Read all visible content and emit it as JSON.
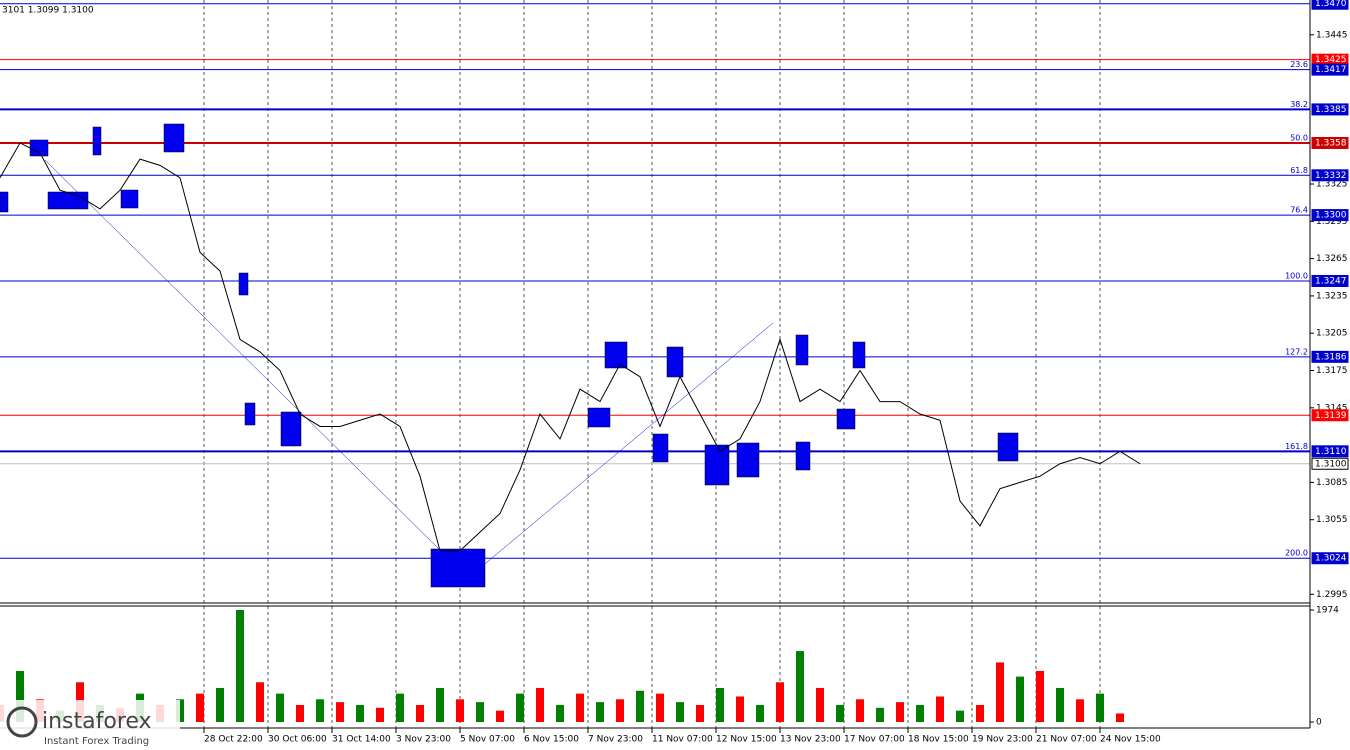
{
  "brand": {
    "name": "instaforex",
    "tagline": "Instant Forex Trading"
  },
  "chart_data": [
    {
      "type": "line",
      "title": "3101 1.3099 1.3100",
      "color": "#000000",
      "x": [
        0,
        1,
        2,
        3,
        4,
        5,
        6,
        7,
        8,
        9,
        10,
        11,
        12,
        13,
        14,
        15,
        16,
        17,
        18,
        19,
        20,
        21,
        22,
        23,
        24,
        25,
        26,
        27,
        28,
        29,
        30,
        31,
        32,
        33,
        34,
        35,
        36,
        37,
        38,
        39,
        40,
        41,
        42,
        43,
        44,
        45,
        46,
        47,
        48,
        49,
        50,
        51,
        52,
        53,
        54,
        55,
        56,
        57
      ],
      "values": [
        1.333,
        1.3358,
        1.335,
        1.332,
        1.3315,
        1.3305,
        1.332,
        1.3345,
        1.334,
        1.333,
        1.327,
        1.3255,
        1.32,
        1.319,
        1.3175,
        1.314,
        1.313,
        1.313,
        1.3135,
        1.314,
        1.313,
        1.309,
        1.303,
        1.303,
        1.3045,
        1.306,
        1.3095,
        1.314,
        1.312,
        1.316,
        1.315,
        1.318,
        1.317,
        1.313,
        1.317,
        1.314,
        1.311,
        1.312,
        1.315,
        1.32,
        1.315,
        1.316,
        1.315,
        1.3175,
        1.315,
        1.315,
        1.314,
        1.3135,
        1.307,
        1.305,
        1.308,
        1.3085,
        1.309,
        1.31,
        1.3105,
        1.31,
        1.311,
        1.31
      ],
      "xlim": [
        0,
        65.5
      ],
      "ylim": [
        1.2988,
        1.3473
      ],
      "xticks": [
        {
          "value": 10.2,
          "label": "28 Oct 22:00"
        },
        {
          "value": 13.4,
          "label": "30 Oct 06:00"
        },
        {
          "value": 16.6,
          "label": "31 Oct 14:00"
        },
        {
          "value": 19.8,
          "label": "3 Nov 23:00"
        },
        {
          "value": 23,
          "label": "5 Nov 07:00"
        },
        {
          "value": 26.2,
          "label": "6 Nov 15:00"
        },
        {
          "value": 29.4,
          "label": "7 Nov 23:00"
        },
        {
          "value": 32.6,
          "label": "11 Nov 07:00"
        },
        {
          "value": 35.8,
          "label": "12 Nov 15:00"
        },
        {
          "value": 39,
          "label": "13 Nov 23:00"
        },
        {
          "value": 42.2,
          "label": "17 Nov 07:00"
        },
        {
          "value": 45.4,
          "label": "18 Nov 15:00"
        },
        {
          "value": 48.6,
          "label": "19 Nov 23:00"
        },
        {
          "value": 51.8,
          "label": "21 Nov 07:00"
        },
        {
          "value": 55,
          "label": "24 Nov 15:00"
        }
      ],
      "yticks": [
        1.3445,
        1.3325,
        1.3295,
        1.3265,
        1.3235,
        1.3205,
        1.3175,
        1.3145,
        1.3085,
        1.3055,
        1.2995
      ],
      "levels": [
        {
          "value": 1.347,
          "label": "1.3470",
          "color": "#0000cc"
        },
        {
          "value": 1.3425,
          "label": "1.3425",
          "color": "#ff0000"
        },
        {
          "value": 1.3417,
          "label": "1.3417",
          "fib": "23.6",
          "color": "#0000cc"
        },
        {
          "value": 1.3385,
          "label": "1.3385",
          "fib": "38.2",
          "color": "#0000cc"
        },
        {
          "value": 1.3358,
          "label": "1.3358",
          "fib": "50.0",
          "color": "#cc0000"
        },
        {
          "value": 1.3332,
          "label": "1.3332",
          "fib": "61.8",
          "color": "#0000cc"
        },
        {
          "value": 1.33,
          "label": "1.3300",
          "fib": "76.4",
          "color": "#0000cc"
        },
        {
          "value": 1.3247,
          "label": "1.3247",
          "fib": "100.0",
          "color": "#0000cc"
        },
        {
          "value": 1.3186,
          "label": "1.3186",
          "fib": "127.2",
          "color": "#0000cc"
        },
        {
          "value": 1.3139,
          "label": "1.3139",
          "color": "#ff0000"
        },
        {
          "value": 1.311,
          "label": "1.3110",
          "fib": "161.8",
          "color": "#0000cc"
        },
        {
          "value": 1.31,
          "label": "1.3100",
          "color": "#c0c0c0"
        },
        {
          "value": 1.3024,
          "label": "1.3024",
          "fib": "200.0",
          "color": "#0000cc"
        }
      ]
    },
    {
      "type": "bar",
      "x": [
        0,
        1,
        2,
        3,
        4,
        5,
        6,
        7,
        8,
        9,
        10,
        11,
        12,
        13,
        14,
        15,
        16,
        17,
        18,
        19,
        20,
        21,
        22,
        23,
        24,
        25,
        26,
        27,
        28,
        29,
        30,
        31,
        32,
        33,
        34,
        35,
        36,
        37,
        38,
        39,
        40,
        41,
        42,
        43,
        44,
        45,
        46,
        47,
        48,
        49,
        50,
        51,
        52,
        53,
        54,
        55,
        56
      ],
      "values": [
        300,
        900,
        400,
        200,
        700,
        300,
        250,
        500,
        300,
        400,
        500,
        600,
        1974,
        700,
        500,
        300,
        400,
        350,
        300,
        250,
        500,
        300,
        600,
        400,
        350,
        200,
        500,
        600,
        300,
        500,
        350,
        400,
        550,
        500,
        350,
        300,
        600,
        450,
        300,
        700,
        1250,
        600,
        300,
        400,
        250,
        350,
        300,
        450,
        200,
        300,
        1050,
        800,
        900,
        600,
        400,
        500,
        150
      ],
      "colors": [
        "#ff0000",
        "#008000",
        "#ff0000",
        "#008000",
        "#ff0000",
        "#008000",
        "#ff0000",
        "#008000",
        "#ff0000",
        "#008000",
        "#ff0000",
        "#008000",
        "#008000",
        "#ff0000",
        "#008000",
        "#ff0000",
        "#008000",
        "#ff0000",
        "#008000",
        "#ff0000",
        "#008000",
        "#ff0000",
        "#008000",
        "#ff0000",
        "#008000",
        "#ff0000",
        "#008000",
        "#ff0000",
        "#008000",
        "#ff0000",
        "#008000",
        "#ff0000",
        "#008000",
        "#ff0000",
        "#008000",
        "#ff0000",
        "#008000",
        "#ff0000",
        "#008000",
        "#ff0000",
        "#008000",
        "#ff0000",
        "#008000",
        "#ff0000",
        "#008000",
        "#ff0000",
        "#008000",
        "#ff0000",
        "#008000",
        "#ff0000",
        "#ff0000",
        "#008000",
        "#ff0000",
        "#008000",
        "#ff0000",
        "#008000",
        "#ff0000"
      ],
      "xlim": [
        0,
        65.5
      ],
      "ylim": [
        -106,
        2045
      ],
      "yticks": [
        0,
        1974
      ]
    }
  ]
}
